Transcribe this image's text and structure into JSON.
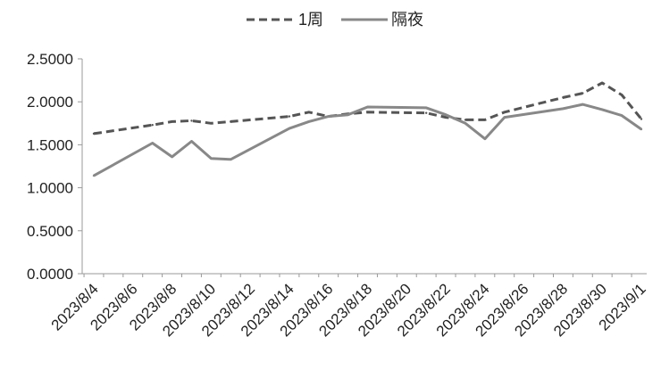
{
  "chart_data": {
    "type": "line",
    "title": "",
    "xlabel": "",
    "ylabel": "",
    "ylim": [
      0,
      2.5
    ],
    "y_ticks": [
      "0.0000",
      "0.5000",
      "1.0000",
      "1.5000",
      "2.0000",
      "2.5000"
    ],
    "x_ticks": [
      "2023/8/4",
      "2023/8/6",
      "2023/8/8",
      "2023/8/10",
      "2023/8/12",
      "2023/8/14",
      "2023/8/16",
      "2023/8/18",
      "2023/8/20",
      "2023/8/22",
      "2023/8/24",
      "2023/8/26",
      "2023/8/28",
      "2023/8/30",
      "2023/9/1"
    ],
    "x_range": [
      "2023-08-04",
      "2023-09-01"
    ],
    "grid": false,
    "legend_position": "top-center",
    "series": [
      {
        "name": "1周",
        "style": "dashed",
        "color": "#555555",
        "points": [
          [
            "2023-08-04",
            1.63
          ],
          [
            "2023-08-07",
            1.73
          ],
          [
            "2023-08-08",
            1.77
          ],
          [
            "2023-08-09",
            1.78
          ],
          [
            "2023-08-10",
            1.75
          ],
          [
            "2023-08-11",
            1.77
          ],
          [
            "2023-08-14",
            1.83
          ],
          [
            "2023-08-15",
            1.88
          ],
          [
            "2023-08-16",
            1.83
          ],
          [
            "2023-08-17",
            1.86
          ],
          [
            "2023-08-18",
            1.88
          ],
          [
            "2023-08-21",
            1.87
          ],
          [
            "2023-08-22",
            1.82
          ],
          [
            "2023-08-23",
            1.79
          ],
          [
            "2023-08-24",
            1.79
          ],
          [
            "2023-08-25",
            1.88
          ],
          [
            "2023-08-28",
            2.05
          ],
          [
            "2023-08-29",
            2.1
          ],
          [
            "2023-08-30",
            2.22
          ],
          [
            "2023-08-31",
            2.08
          ],
          [
            "2023-09-01",
            1.8
          ]
        ]
      },
      {
        "name": "隔夜",
        "style": "solid",
        "color": "#888888",
        "points": [
          [
            "2023-08-04",
            1.14
          ],
          [
            "2023-08-07",
            1.52
          ],
          [
            "2023-08-08",
            1.36
          ],
          [
            "2023-08-09",
            1.54
          ],
          [
            "2023-08-10",
            1.34
          ],
          [
            "2023-08-11",
            1.33
          ],
          [
            "2023-08-14",
            1.69
          ],
          [
            "2023-08-15",
            1.77
          ],
          [
            "2023-08-16",
            1.83
          ],
          [
            "2023-08-17",
            1.85
          ],
          [
            "2023-08-18",
            1.94
          ],
          [
            "2023-08-21",
            1.93
          ],
          [
            "2023-08-22",
            1.85
          ],
          [
            "2023-08-23",
            1.75
          ],
          [
            "2023-08-24",
            1.57
          ],
          [
            "2023-08-25",
            1.82
          ],
          [
            "2023-08-28",
            1.92
          ],
          [
            "2023-08-29",
            1.97
          ],
          [
            "2023-08-30",
            1.91
          ],
          [
            "2023-08-31",
            1.84
          ],
          [
            "2023-09-01",
            1.68
          ]
        ]
      }
    ]
  }
}
